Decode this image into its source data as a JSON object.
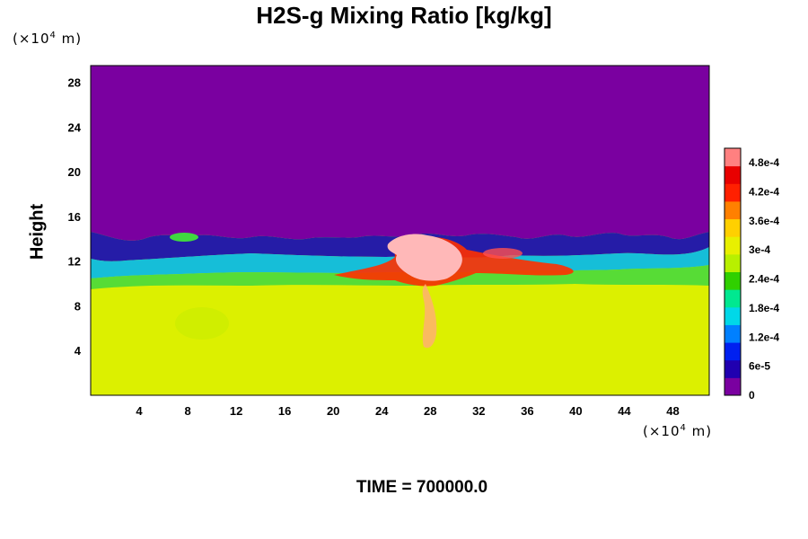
{
  "chart_data": {
    "type": "heatmap",
    "title": "H2S-g Mixing Ratio [kg/kg]",
    "ylabel": "Height",
    "xlabel": "",
    "x_unit": "(×10⁴ m)",
    "y_unit": "(×10⁴ m)",
    "x_ticks": [
      4,
      8,
      12,
      16,
      20,
      24,
      28,
      32,
      36,
      40,
      44,
      48
    ],
    "y_ticks": [
      4,
      8,
      12,
      16,
      20,
      24,
      28
    ],
    "xlim": [
      0,
      51
    ],
    "ylim": [
      0,
      29.5
    ],
    "colorbar": {
      "labels": [
        "0",
        "6e-5",
        "1.2e-4",
        "1.8e-4",
        "2.4e-4",
        "3e-4",
        "3.6e-4",
        "4.2e-4",
        "4.8e-4"
      ],
      "label_values": [
        0,
        6e-05,
        0.00012,
        0.00018,
        0.00024,
        0.0003,
        0.00036,
        0.00042,
        0.00048
      ],
      "range": [
        0,
        0.00051
      ],
      "colors": [
        "#7a00a0",
        "#2000b0",
        "#0020f0",
        "#0080ff",
        "#00d8e8",
        "#00e890",
        "#30d000",
        "#b8f000",
        "#e8f000",
        "#ffd000",
        "#ff8000",
        "#ff2000",
        "#e80000",
        "#ff8080"
      ]
    },
    "regions": [
      {
        "name": "upper layer",
        "value_approx": 0,
        "y_range": [
          14,
          29.5
        ]
      },
      {
        "name": "lower layer",
        "value_approx": 0.00035,
        "y_range": [
          0,
          10
        ]
      },
      {
        "name": "plume core",
        "value_approx": 0.0005,
        "x_range": [
          25,
          31
        ],
        "y_range": [
          10,
          14
        ]
      }
    ],
    "time_text": "TIME = 700000.0"
  }
}
